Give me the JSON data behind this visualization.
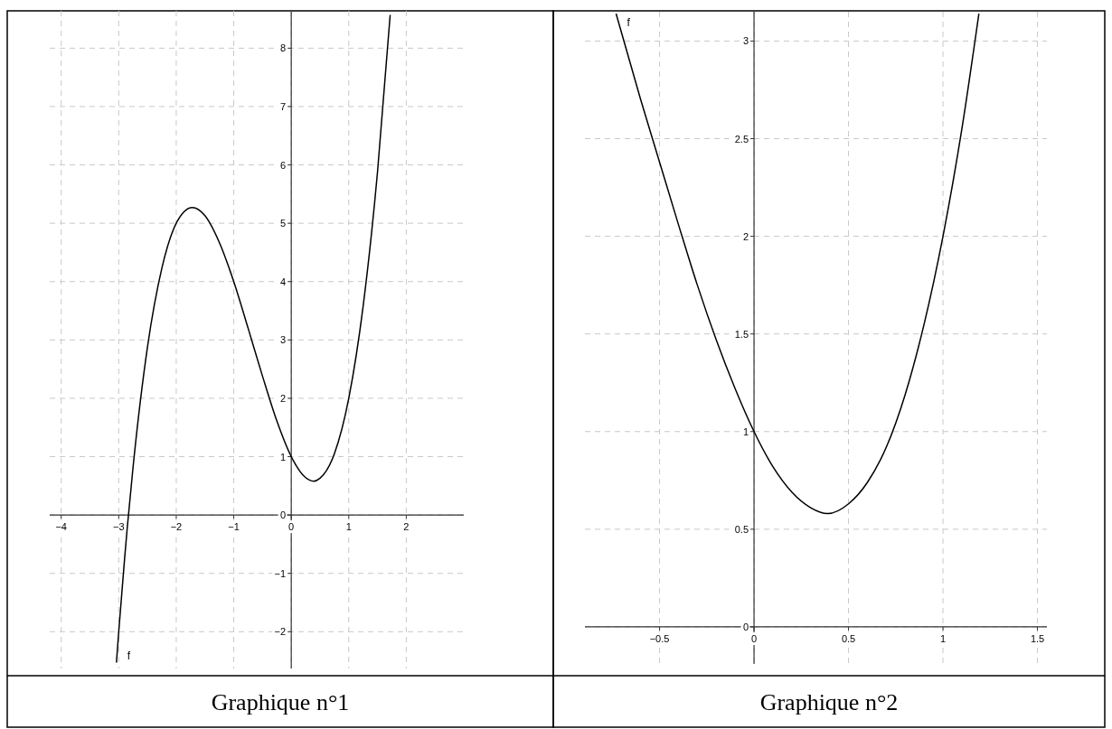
{
  "chart_data": [
    {
      "type": "line",
      "title": "Graphique n°1",
      "xlim": [
        -4.2,
        3.0
      ],
      "ylim": [
        -2.63,
        8.64
      ],
      "xticks": [
        -4,
        -3,
        -2,
        -1,
        0,
        1,
        2
      ],
      "yticks": [
        -2,
        -1,
        0,
        1,
        2,
        3,
        4,
        5,
        6,
        7,
        8
      ],
      "grid": true,
      "series": [
        {
          "name": "f",
          "color": "#000000",
          "x": [
            -3.04,
            -3,
            -2.9,
            -2.85,
            -2.75,
            -2.5,
            -2.25,
            -2,
            -1.72,
            -1.5,
            -1.25,
            -1,
            -0.75,
            -0.5,
            -0.25,
            0,
            0.25,
            0.39,
            0.5,
            0.75,
            1,
            1.25,
            1.5,
            1.72
          ],
          "values": [
            -2.53,
            -2,
            -0.77,
            -0.2,
            0.83,
            2.88,
            4.23,
            5,
            5.27,
            5.13,
            4.67,
            4,
            3.2,
            2.38,
            1.61,
            1,
            0.64,
            0.58,
            0.63,
            1.05,
            2,
            3.58,
            5.88,
            8.57
          ]
        }
      ]
    },
    {
      "type": "line",
      "title": "Graphique n°2",
      "xlim": [
        -0.895,
        1.55
      ],
      "ylim": [
        -0.19,
        3.15
      ],
      "xticks": [
        -0.5,
        0,
        0.5,
        1,
        1.5
      ],
      "yticks": [
        0,
        0.5,
        1,
        1.5,
        2,
        2.5,
        3
      ],
      "grid": true,
      "series": [
        {
          "name": "f",
          "color": "#000000",
          "x": [
            -0.73,
            -0.6,
            -0.5,
            -0.4,
            -0.3,
            -0.2,
            -0.1,
            0,
            0.1,
            0.2,
            0.3,
            0.39,
            0.5,
            0.6,
            0.7,
            0.8,
            0.9,
            1,
            1.1,
            1.19
          ],
          "values": [
            3.14,
            2.7,
            2.38,
            2.06,
            1.75,
            1.47,
            1.22,
            1,
            0.82,
            0.69,
            0.61,
            0.58,
            0.63,
            0.74,
            0.92,
            1.19,
            1.55,
            2,
            2.55,
            3.14
          ]
        }
      ]
    }
  ]
}
